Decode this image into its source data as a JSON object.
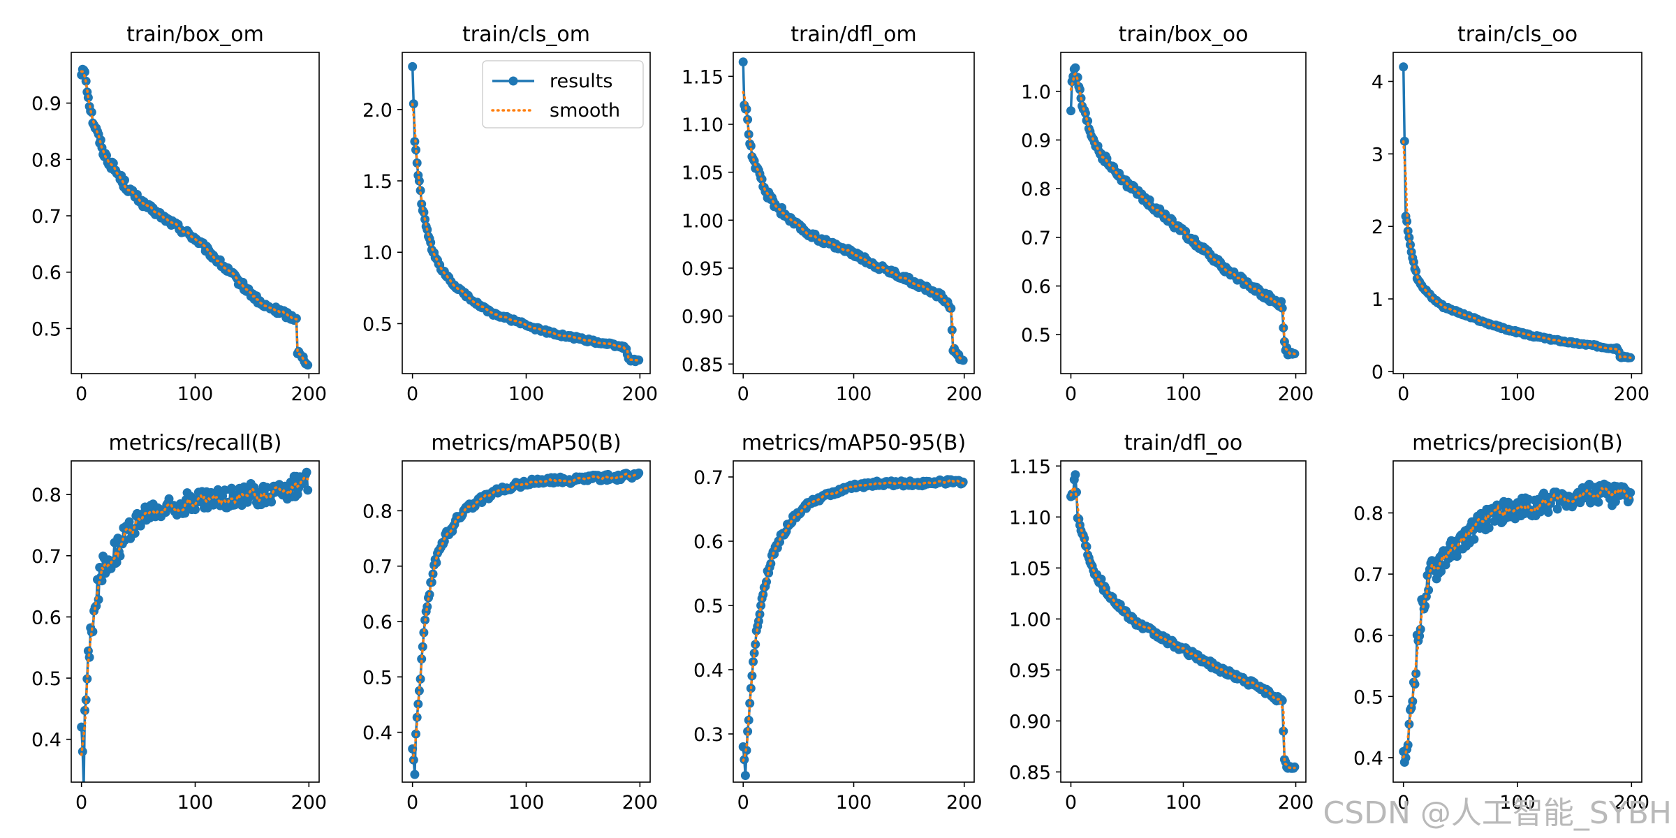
{
  "figure": {
    "watermark": "CSDN @人工智能_SYBH"
  },
  "chart_data": [
    {
      "type": "line",
      "title": "train/box_om",
      "xlim": [
        -9,
        209
      ],
      "ylim": [
        0.42,
        0.99
      ],
      "xticks": [
        0,
        100,
        200
      ],
      "yticks": [
        0.5,
        0.6,
        0.7,
        0.8,
        0.9
      ],
      "curve": {
        "x": [
          0,
          1,
          3,
          6,
          10,
          15,
          20,
          30,
          40,
          55,
          70,
          85,
          100,
          115,
          130,
          145,
          160,
          175,
          185,
          189,
          190,
          193,
          199
        ],
        "y": [
          0.95,
          0.96,
          0.96,
          0.91,
          0.87,
          0.84,
          0.81,
          0.78,
          0.75,
          0.72,
          0.7,
          0.68,
          0.66,
          0.63,
          0.6,
          0.57,
          0.54,
          0.53,
          0.52,
          0.52,
          0.46,
          0.45,
          0.44
        ]
      },
      "noise": 0.006,
      "legend": false
    },
    {
      "type": "line",
      "title": "train/cls_om",
      "xlim": [
        -9,
        209
      ],
      "ylim": [
        0.15,
        2.4
      ],
      "xticks": [
        0,
        100,
        200
      ],
      "yticks": [
        0.5,
        1.0,
        1.5,
        2.0
      ],
      "curve": {
        "x": [
          0,
          2,
          5,
          8,
          12,
          17,
          25,
          35,
          50,
          70,
          90,
          110,
          130,
          150,
          170,
          188,
          190,
          199
        ],
        "y": [
          2.3,
          1.78,
          1.55,
          1.35,
          1.18,
          1.02,
          0.88,
          0.78,
          0.68,
          0.57,
          0.52,
          0.46,
          0.42,
          0.39,
          0.36,
          0.33,
          0.25,
          0.24
        ]
      },
      "noise": 0.012,
      "legend": true
    },
    {
      "type": "line",
      "title": "train/dfl_om",
      "xlim": [
        -9,
        209
      ],
      "ylim": [
        0.84,
        1.175
      ],
      "xticks": [
        0,
        100,
        200
      ],
      "yticks": [
        0.85,
        0.9,
        0.95,
        1.0,
        1.05,
        1.1,
        1.15
      ],
      "curve": {
        "x": [
          0,
          1,
          3,
          6,
          10,
          15,
          20,
          30,
          45,
          60,
          80,
          100,
          120,
          140,
          160,
          180,
          188,
          190,
          193,
          199
        ],
        "y": [
          1.165,
          1.12,
          1.115,
          1.08,
          1.06,
          1.045,
          1.03,
          1.015,
          0.998,
          0.985,
          0.975,
          0.965,
          0.953,
          0.943,
          0.932,
          0.92,
          0.91,
          0.865,
          0.86,
          0.855
        ]
      },
      "noise": 0.003,
      "legend": false
    },
    {
      "type": "line",
      "title": "train/box_oo",
      "xlim": [
        -9,
        209
      ],
      "ylim": [
        0.42,
        1.08
      ],
      "xticks": [
        0,
        100,
        200
      ],
      "yticks": [
        0.5,
        0.6,
        0.7,
        0.8,
        0.9,
        1.0
      ],
      "curve": {
        "x": [
          0,
          1,
          3,
          6,
          10,
          15,
          20,
          30,
          45,
          60,
          80,
          100,
          120,
          140,
          160,
          180,
          188,
          190,
          193,
          199
        ],
        "y": [
          0.96,
          1.02,
          1.05,
          1.02,
          0.97,
          0.93,
          0.9,
          0.86,
          0.82,
          0.79,
          0.75,
          0.71,
          0.67,
          0.63,
          0.6,
          0.57,
          0.56,
          0.48,
          0.46,
          0.455
        ]
      },
      "noise": 0.007,
      "legend": false
    },
    {
      "type": "line",
      "title": "train/cls_oo",
      "xlim": [
        -9,
        209
      ],
      "ylim": [
        -0.03,
        4.4
      ],
      "xticks": [
        0,
        100,
        200
      ],
      "yticks": [
        0,
        1,
        2,
        3,
        4
      ],
      "curve": {
        "x": [
          0,
          2,
          5,
          8,
          12,
          18,
          25,
          35,
          50,
          70,
          90,
          110,
          130,
          150,
          170,
          188,
          190,
          199
        ],
        "y": [
          4.2,
          2.15,
          1.85,
          1.55,
          1.3,
          1.15,
          1.02,
          0.9,
          0.8,
          0.68,
          0.58,
          0.5,
          0.44,
          0.39,
          0.35,
          0.31,
          0.2,
          0.19
        ]
      },
      "noise": 0.015,
      "legend": false
    },
    {
      "type": "line",
      "title": "metrics/recall(B)",
      "xlim": [
        -9,
        209
      ],
      "ylim": [
        0.33,
        0.855
      ],
      "xticks": [
        0,
        100,
        200
      ],
      "yticks": [
        0.4,
        0.5,
        0.6,
        0.7,
        0.8
      ],
      "curve": {
        "x": [
          0,
          2,
          3,
          5,
          8,
          12,
          18,
          25,
          35,
          45,
          60,
          80,
          100,
          120,
          140,
          160,
          180,
          199
        ],
        "y": [
          0.42,
          0.34,
          0.44,
          0.5,
          0.57,
          0.63,
          0.67,
          0.7,
          0.72,
          0.75,
          0.77,
          0.78,
          0.79,
          0.79,
          0.8,
          0.8,
          0.81,
          0.82
        ]
      },
      "noise": 0.018,
      "legend": false
    },
    {
      "type": "line",
      "title": "metrics/mAP50(B)",
      "xlim": [
        -9,
        209
      ],
      "ylim": [
        0.31,
        0.89
      ],
      "xticks": [
        0,
        100,
        200
      ],
      "yticks": [
        0.4,
        0.5,
        0.6,
        0.7,
        0.8
      ],
      "curve": {
        "x": [
          0,
          2,
          3,
          5,
          8,
          12,
          18,
          25,
          35,
          45,
          60,
          80,
          100,
          120,
          140,
          160,
          180,
          199
        ],
        "y": [
          0.37,
          0.33,
          0.4,
          0.45,
          0.53,
          0.62,
          0.69,
          0.74,
          0.77,
          0.8,
          0.82,
          0.84,
          0.85,
          0.855,
          0.855,
          0.86,
          0.86,
          0.865
        ]
      },
      "noise": 0.006,
      "legend": false
    },
    {
      "type": "line",
      "title": "metrics/mAP50-95(B)",
      "xlim": [
        -9,
        209
      ],
      "ylim": [
        0.225,
        0.725
      ],
      "xticks": [
        0,
        100,
        200
      ],
      "yticks": [
        0.3,
        0.4,
        0.5,
        0.6,
        0.7
      ],
      "curve": {
        "x": [
          0,
          2,
          3,
          5,
          8,
          12,
          18,
          25,
          35,
          45,
          60,
          80,
          100,
          120,
          140,
          160,
          180,
          199
        ],
        "y": [
          0.28,
          0.24,
          0.28,
          0.32,
          0.39,
          0.46,
          0.52,
          0.57,
          0.61,
          0.635,
          0.66,
          0.675,
          0.685,
          0.69,
          0.69,
          0.69,
          0.692,
          0.693
        ]
      },
      "noise": 0.004,
      "legend": false
    },
    {
      "type": "line",
      "title": "train/dfl_oo",
      "xlim": [
        -9,
        209
      ],
      "ylim": [
        0.84,
        1.155
      ],
      "xticks": [
        0,
        100,
        200
      ],
      "yticks": [
        0.85,
        0.9,
        0.95,
        1.0,
        1.05,
        1.1,
        1.15
      ],
      "curve": {
        "x": [
          0,
          2,
          4,
          6,
          10,
          15,
          20,
          30,
          45,
          60,
          80,
          100,
          120,
          140,
          160,
          180,
          188,
          190,
          193,
          199
        ],
        "y": [
          1.12,
          1.125,
          1.145,
          1.1,
          1.085,
          1.065,
          1.05,
          1.03,
          1.01,
          0.995,
          0.982,
          0.97,
          0.958,
          0.947,
          0.937,
          0.925,
          0.918,
          0.86,
          0.855,
          0.852
        ]
      },
      "noise": 0.003,
      "legend": false
    },
    {
      "type": "line",
      "title": "metrics/precision(B)",
      "xlim": [
        -9,
        209
      ],
      "ylim": [
        0.36,
        0.885
      ],
      "xticks": [
        0,
        100,
        200
      ],
      "yticks": [
        0.4,
        0.5,
        0.6,
        0.7,
        0.8
      ],
      "curve": {
        "x": [
          0,
          2,
          3,
          5,
          8,
          12,
          18,
          25,
          35,
          45,
          60,
          80,
          100,
          120,
          140,
          160,
          180,
          199
        ],
        "y": [
          0.41,
          0.375,
          0.42,
          0.44,
          0.5,
          0.58,
          0.66,
          0.7,
          0.73,
          0.74,
          0.77,
          0.8,
          0.805,
          0.815,
          0.825,
          0.83,
          0.83,
          0.83
        ]
      },
      "noise": 0.018,
      "legend": false
    }
  ],
  "legend": {
    "results_label": "results",
    "smooth_label": "smooth"
  },
  "colors": {
    "results": "#1f77b4",
    "smooth": "#ff7f0e",
    "axis": "#000000",
    "background": "#ffffff",
    "watermark": "#b9b9b9"
  }
}
